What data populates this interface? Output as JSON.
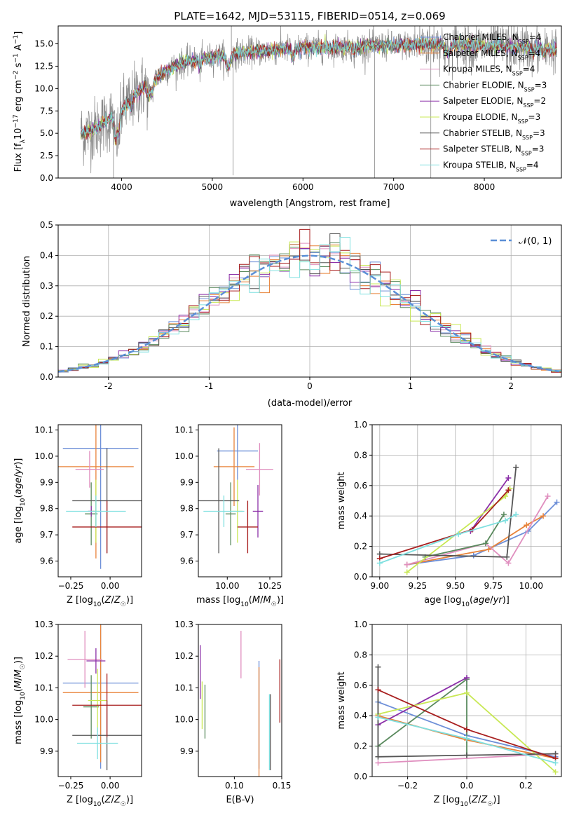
{
  "title": "PLATE=1642, MJD=53115, FIBERID=0514, z=0.069",
  "colors": {
    "Chabrier MILES": "#6d8fd8",
    "Salpeter MILES": "#e8833a",
    "Kroupa MILES": "#e08fbf",
    "Chabrier ELODIE": "#5a8a5e",
    "Salpeter ELODIE": "#8b2fa8",
    "Kroupa ELODIE": "#c8e854",
    "Chabrier STELIB": "#555555",
    "Salpeter STELIB": "#a81e1e",
    "Kroupa STELIB": "#7fe0e0",
    "data": "#888888",
    "gaussian": "#5b8fd6"
  },
  "chart_data": [
    {
      "id": "spectrum",
      "type": "line",
      "title": "PLATE=1642, MJD=53115, FIBERID=0514, z=0.069",
      "xlabel": "wavelength [Angstrom, rest frame]",
      "ylabel": "Flux [f_λ 10^-17 erg cm^-2 s^-1 A^-1]",
      "xlim": [
        3300,
        8850
      ],
      "ylim": [
        0,
        17
      ],
      "xticks": [
        4000,
        5000,
        6000,
        7000,
        8000
      ],
      "yticks": [
        0.0,
        2.5,
        5.0,
        7.5,
        10.0,
        12.5,
        15.0
      ],
      "legend_position": "top-right",
      "series_order": [
        "Chabrier MILES",
        "Salpeter MILES",
        "Kroupa MILES",
        "Chabrier ELODIE",
        "Salpeter ELODIE",
        "Kroupa ELODIE",
        "Chabrier STELIB",
        "Salpeter STELIB",
        "Kroupa STELIB"
      ],
      "legend": [
        {
          "name": "Chabrier MILES",
          "nssp": "4"
        },
        {
          "name": "Salpeter MILES",
          "nssp": "4"
        },
        {
          "name": "Kroupa MILES",
          "nssp": "4"
        },
        {
          "name": "Chabrier ELODIE",
          "nssp": "3"
        },
        {
          "name": "Salpeter ELODIE",
          "nssp": "2"
        },
        {
          "name": "Kroupa ELODIE",
          "nssp": "3"
        },
        {
          "name": "Chabrier STELIB",
          "nssp": "3"
        },
        {
          "name": "Salpeter STELIB",
          "nssp": "3"
        },
        {
          "name": "Kroupa STELIB",
          "nssp": "4"
        }
      ],
      "model_continuum": {
        "x": [
          3550,
          3650,
          3750,
          3850,
          3950,
          4050,
          4150,
          4250,
          4350,
          4450,
          4550,
          4650,
          4800,
          5000,
          5200,
          5400,
          5600,
          5800,
          6000,
          6200,
          6400,
          6600,
          6800,
          7000,
          7200,
          7400,
          7600,
          7800,
          8000,
          8200,
          8400,
          8600,
          8800
        ],
        "y": [
          5.0,
          5.2,
          5.8,
          6.5,
          7.2,
          8.2,
          9.3,
          10.3,
          10.9,
          11.7,
          12.3,
          12.7,
          13.2,
          13.5,
          13.8,
          14.1,
          14.2,
          14.4,
          14.5,
          14.6,
          14.6,
          14.7,
          14.8,
          14.8,
          14.9,
          15.0,
          15.0,
          14.9,
          14.8,
          14.7,
          14.6,
          14.5,
          14.4
        ]
      },
      "data_spikes": [
        {
          "x": 5210,
          "y": 17.0
        },
        {
          "x": 5230,
          "y": 0.3
        },
        {
          "x": 3910,
          "y": 0.0
        },
        {
          "x": 6790,
          "y": 0.0
        },
        {
          "x": 7410,
          "y": 0.0
        }
      ]
    },
    {
      "id": "residual-histogram",
      "type": "bar",
      "xlabel": "(data-model)/error",
      "ylabel": "Normed distribution",
      "xlim": [
        -2.5,
        2.5
      ],
      "ylim": [
        0,
        0.5
      ],
      "xticks": [
        -2,
        -1,
        0,
        1,
        2
      ],
      "yticks": [
        0.0,
        0.1,
        0.2,
        0.3,
        0.4,
        0.5
      ],
      "grid": true,
      "legend_position": "top-right",
      "gaussian_label": "𝒩(0, 1)",
      "bin_width": 0.1
    },
    {
      "id": "age-vs-z",
      "type": "scatter",
      "xlabel": "Z [log10(Z/Z☉)]",
      "ylabel": "age [log10(age/yr)]",
      "xlim": [
        -0.33,
        0.2
      ],
      "ylim": [
        9.54,
        10.12
      ],
      "xticks": [
        -0.25,
        0.0
      ],
      "xticklabels": [
        "−0.25",
        "0.00"
      ],
      "yticks": [
        9.6,
        9.7,
        9.8,
        9.9,
        10.0,
        10.1
      ],
      "points": [
        {
          "series": "Chabrier MILES",
          "x": -0.06,
          "xerr": 0.24,
          "y": 10.03,
          "yerr": 0.46
        },
        {
          "series": "Salpeter MILES",
          "x": -0.09,
          "xerr": 0.24,
          "y": 9.96,
          "yerr": 0.35
        },
        {
          "series": "Kroupa MILES",
          "x": -0.13,
          "xerr": 0.09,
          "y": 9.95,
          "yerr": 0.07
        },
        {
          "series": "Chabrier ELODIE",
          "x": -0.12,
          "xerr": 0.04,
          "y": 9.78,
          "yerr": 0.12
        },
        {
          "series": "Salpeter ELODIE",
          "x": -0.12,
          "xerr": 0.02,
          "y": 9.79,
          "yerr": 0.02
        },
        {
          "series": "Kroupa ELODIE",
          "x": -0.09,
          "xerr": 0.03,
          "y": 9.79,
          "yerr": 0.12
        },
        {
          "series": "Chabrier STELIB",
          "x": -0.02,
          "xerr": 0.22,
          "y": 9.83,
          "yerr": 0.2
        },
        {
          "series": "Salpeter STELIB",
          "x": -0.02,
          "xerr": 0.22,
          "y": 9.73,
          "yerr": 0.1
        },
        {
          "series": "Kroupa STELIB",
          "x": -0.09,
          "xerr": 0.19,
          "y": 9.79,
          "yerr": 0.06
        }
      ]
    },
    {
      "id": "age-vs-mass",
      "type": "scatter",
      "xlabel": "mass [log10(M/M☉)]",
      "ylabel": "",
      "xlim": [
        9.83,
        10.32
      ],
      "ylim": [
        9.54,
        10.12
      ],
      "xticks": [
        10.0,
        10.25
      ],
      "xticklabels": [
        "10.00",
        "10.25"
      ],
      "yticks": [
        9.6,
        9.7,
        9.8,
        9.9,
        10.0,
        10.1
      ],
      "points": [
        {
          "series": "Chabrier MILES",
          "x": 10.06,
          "xerr": 0.12,
          "y": 10.02,
          "yerr": 0.11
        },
        {
          "series": "Salpeter MILES",
          "x": 10.04,
          "xerr": 0.12,
          "y": 9.96,
          "yerr": 0.15
        },
        {
          "series": "Kroupa MILES",
          "x": 10.19,
          "xerr": 0.08,
          "y": 9.95,
          "yerr": 0.1
        },
        {
          "series": "Chabrier ELODIE",
          "x": 10.02,
          "xerr": 0.03,
          "y": 9.78,
          "yerr": 0.12
        },
        {
          "series": "Salpeter ELODIE",
          "x": 10.18,
          "xerr": 0.03,
          "y": 9.79,
          "yerr": 0.1
        },
        {
          "series": "Kroupa ELODIE",
          "x": 10.06,
          "xerr": 0.03,
          "y": 9.79,
          "yerr": 0.12
        },
        {
          "series": "Chabrier STELIB",
          "x": 9.95,
          "xerr": 0.12,
          "y": 9.83,
          "yerr": 0.2
        },
        {
          "series": "Salpeter STELIB",
          "x": 10.12,
          "xerr": 0.06,
          "y": 9.73,
          "yerr": 0.1
        },
        {
          "series": "Kroupa STELIB",
          "x": 9.98,
          "xerr": 0.12,
          "y": 9.79,
          "yerr": 0.06
        }
      ]
    },
    {
      "id": "weight-vs-age",
      "type": "line",
      "xlabel": "age [log10(age/yr)]",
      "ylabel": "mass weight",
      "xlim": [
        8.95,
        10.2
      ],
      "ylim": [
        0,
        1
      ],
      "xticks": [
        9.0,
        9.25,
        9.5,
        9.75,
        10.0
      ],
      "xticklabels": [
        "9.00",
        "9.25",
        "9.50",
        "9.75",
        "10.00"
      ],
      "yticks": [
        0.0,
        0.2,
        0.4,
        0.6,
        0.8,
        1.0
      ],
      "grid": true,
      "series": [
        {
          "name": "Chabrier MILES",
          "x": [
            9.18,
            9.62,
            9.98,
            10.17
          ],
          "y": [
            0.08,
            0.14,
            0.3,
            0.49
          ]
        },
        {
          "name": "Salpeter MILES",
          "x": [
            9.18,
            9.72,
            9.97,
            10.08
          ],
          "y": [
            0.08,
            0.18,
            0.34,
            0.4
          ]
        },
        {
          "name": "Kroupa MILES",
          "x": [
            9.18,
            9.7,
            9.85,
            10.11
          ],
          "y": [
            0.08,
            0.22,
            0.09,
            0.53
          ]
        },
        {
          "name": "Chabrier ELODIE",
          "x": [
            9.3,
            9.7,
            9.82
          ],
          "y": [
            0.13,
            0.22,
            0.41
          ]
        },
        {
          "name": "Salpeter ELODIE",
          "x": [
            9.6,
            9.85
          ],
          "y": [
            0.3,
            0.65
          ]
        },
        {
          "name": "Kroupa ELODIE",
          "x": [
            9.18,
            9.83,
            9.86
          ],
          "y": [
            0.03,
            0.53,
            0.58
          ]
        },
        {
          "name": "Chabrier STELIB",
          "x": [
            9.0,
            9.84,
            9.9
          ],
          "y": [
            0.15,
            0.13,
            0.72
          ]
        },
        {
          "name": "Salpeter STELIB",
          "x": [
            9.0,
            9.61,
            9.85
          ],
          "y": [
            0.12,
            0.31,
            0.57
          ]
        },
        {
          "name": "Kroupa STELIB",
          "x": [
            9.0,
            9.52,
            9.83,
            9.9
          ],
          "y": [
            0.09,
            0.28,
            0.37,
            0.41
          ]
        }
      ]
    },
    {
      "id": "mass-vs-z",
      "type": "scatter",
      "xlabel": "Z [log10(Z/Z☉)]",
      "ylabel": "mass [log10(M/M☉)]",
      "xlim": [
        -0.33,
        0.2
      ],
      "ylim": [
        9.82,
        10.3
      ],
      "xticks": [
        -0.25,
        0.0
      ],
      "xticklabels": [
        "−0.25",
        "0.00"
      ],
      "yticks": [
        9.9,
        10.0,
        10.1,
        10.2,
        10.3
      ],
      "points": [
        {
          "series": "Chabrier MILES",
          "x": -0.06,
          "xerr": 0.24,
          "y": 10.115,
          "yerr": 0.27
        },
        {
          "series": "Salpeter MILES",
          "x": -0.06,
          "xerr": 0.24,
          "y": 10.085,
          "yerr": 0.22
        },
        {
          "series": "Kroupa MILES",
          "x": -0.16,
          "xerr": 0.11,
          "y": 10.19,
          "yerr": 0.09
        },
        {
          "series": "Chabrier ELODIE",
          "x": -0.12,
          "xerr": 0.05,
          "y": 10.04,
          "yerr": 0.1
        },
        {
          "series": "Salpeter ELODIE",
          "x": -0.09,
          "xerr": 0.06,
          "y": 10.185,
          "yerr": 0.04
        },
        {
          "series": "Kroupa ELODIE",
          "x": -0.08,
          "xerr": 0.06,
          "y": 10.06,
          "yerr": 0.1
        },
        {
          "series": "Chabrier STELIB",
          "x": -0.02,
          "xerr": 0.22,
          "y": 9.95,
          "yerr": 0.11
        },
        {
          "series": "Salpeter STELIB",
          "x": -0.02,
          "xerr": 0.22,
          "y": 10.045,
          "yerr": 0.1
        },
        {
          "series": "Kroupa STELIB",
          "x": -0.08,
          "xerr": 0.13,
          "y": 9.925,
          "yerr": 0.05
        }
      ]
    },
    {
      "id": "mass-vs-ebv",
      "type": "scatter",
      "xlabel": "E(B-V)",
      "ylabel": "",
      "xlim": [
        0.062,
        0.15
      ],
      "ylim": [
        9.82,
        10.3
      ],
      "xticks": [
        0.1,
        0.15
      ],
      "xticklabels": [
        "0.10",
        "0.15"
      ],
      "yticks": [
        9.9,
        10.0,
        10.1,
        10.2,
        10.3
      ],
      "points": [
        {
          "series": "Chabrier MILES",
          "x": 0.126,
          "y": 10.015,
          "yerr": 0.17
        },
        {
          "series": "Salpeter MILES",
          "x": 0.126,
          "y": 9.985,
          "yerr": 0.18
        },
        {
          "series": "Kroupa MILES",
          "x": 0.107,
          "y": 10.205,
          "yerr": 0.075
        },
        {
          "series": "Chabrier ELODIE",
          "x": 0.069,
          "y": 10.025,
          "yerr": 0.085
        },
        {
          "series": "Salpeter ELODIE",
          "x": 0.064,
          "y": 10.15,
          "yerr": 0.085
        },
        {
          "series": "Kroupa ELODIE",
          "x": 0.066,
          "y": 10.045,
          "yerr": 0.075
        },
        {
          "series": "Chabrier STELIB",
          "x": 0.138,
          "y": 9.96,
          "yerr": 0.12
        },
        {
          "series": "Salpeter STELIB",
          "x": 0.148,
          "y": 10.09,
          "yerr": 0.1
        },
        {
          "series": "Kroupa STELIB",
          "x": 0.137,
          "y": 9.96,
          "yerr": 0.12
        }
      ]
    },
    {
      "id": "weight-vs-z",
      "type": "line",
      "xlabel": "Z [log10(Z/Z☉)]",
      "ylabel": "mass weight",
      "xlim": [
        -0.32,
        0.32
      ],
      "ylim": [
        0,
        1
      ],
      "xticks": [
        -0.2,
        0.0,
        0.2
      ],
      "xticklabels": [
        "−0.2",
        "0.0",
        "0.2"
      ],
      "yticks": [
        0.0,
        0.2,
        0.4,
        0.6,
        0.8,
        1.0
      ],
      "grid": true,
      "series": [
        {
          "name": "Chabrier MILES",
          "x": [
            -0.3,
            0.0,
            0.3
          ],
          "y": [
            0.49,
            0.27,
            0.13
          ]
        },
        {
          "name": "Salpeter MILES",
          "x": [
            -0.3,
            0.0,
            0.3
          ],
          "y": [
            0.4,
            0.24,
            0.12
          ]
        },
        {
          "name": "Kroupa MILES",
          "x": [
            -0.3,
            0.3
          ],
          "y": [
            0.09,
            0.15
          ]
        },
        {
          "name": "Chabrier ELODIE",
          "x": [
            -0.3,
            0.0,
            0.0
          ],
          "y": [
            0.2,
            0.64,
            0.14
          ]
        },
        {
          "name": "Salpeter ELODIE",
          "x": [
            -0.3,
            0.0
          ],
          "y": [
            0.34,
            0.65
          ]
        },
        {
          "name": "Kroupa ELODIE",
          "x": [
            -0.3,
            0.0,
            0.3
          ],
          "y": [
            0.41,
            0.55,
            0.03
          ]
        },
        {
          "name": "Chabrier STELIB",
          "x": [
            -0.3,
            -0.3,
            0.0,
            0.3
          ],
          "y": [
            0.72,
            0.13,
            0.14,
            0.15
          ]
        },
        {
          "name": "Salpeter STELIB",
          "x": [
            -0.3,
            0.0,
            0.3
          ],
          "y": [
            0.57,
            0.31,
            0.12
          ]
        },
        {
          "name": "Kroupa STELIB",
          "x": [
            -0.3,
            0.0,
            0.3
          ],
          "y": [
            0.39,
            0.25,
            0.09
          ]
        }
      ]
    }
  ]
}
